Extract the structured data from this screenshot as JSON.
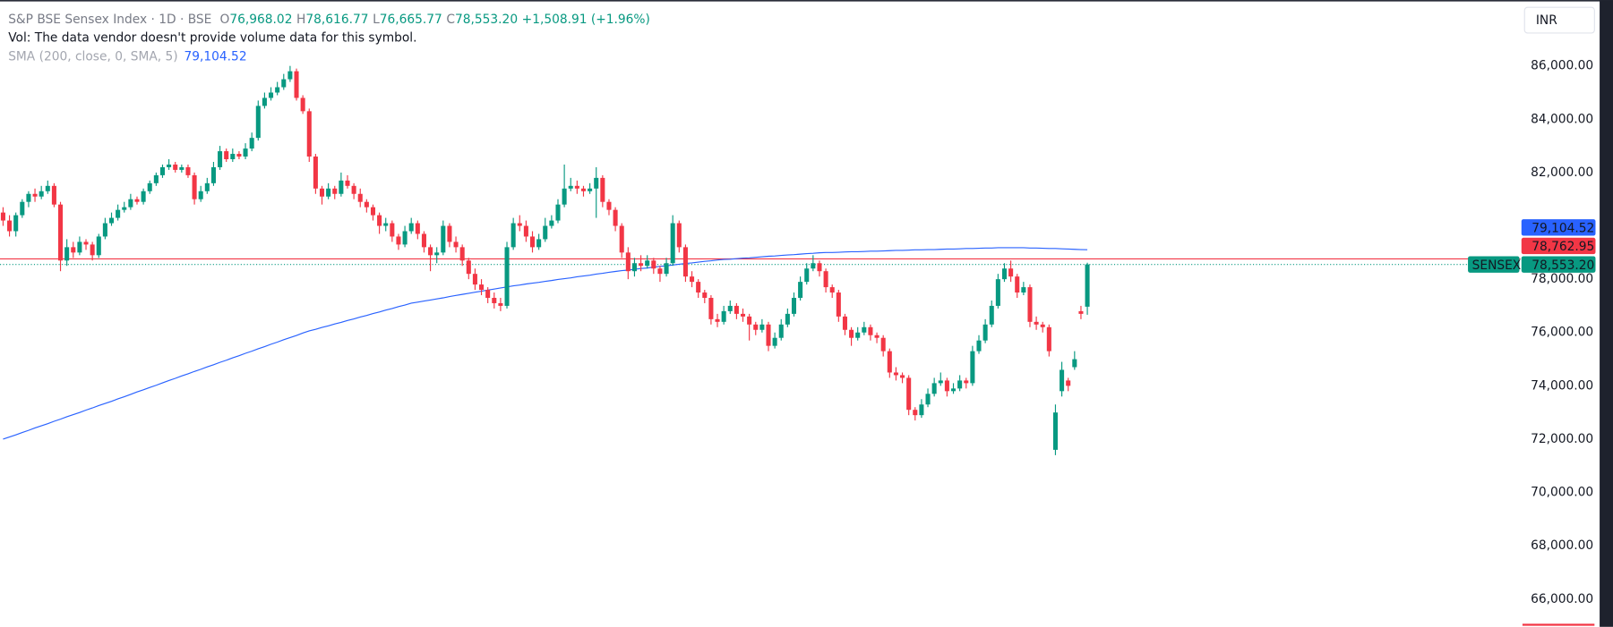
{
  "chart_data": {
    "type": "candlestick",
    "header": {
      "title": "S&P BSE Sensex Index · 1D · BSE",
      "ohlc": [
        {
          "key": "O",
          "value": "76,968.02"
        },
        {
          "key": "H",
          "value": "78,616.77"
        },
        {
          "key": "L",
          "value": "76,665.77"
        },
        {
          "key": "C",
          "value": "78,553.20"
        }
      ],
      "change": "+1,508.91 (+1.96%)",
      "volume_note": "Vol: The data vendor doesn't provide volume data for this symbol.",
      "sma_label": "SMA (200, close, 0, SMA, 5)",
      "sma_value": "79,104.52"
    },
    "currency": "INR",
    "up_color": "#089981",
    "down_color": "#f23645",
    "sma_color": "#2962ff",
    "ylim": [
      64960,
      88466
    ],
    "yticks": [
      {
        "value": 86000,
        "label": "86,000.00"
      },
      {
        "value": 84000,
        "label": "84,000.00"
      },
      {
        "value": 82000,
        "label": "82,000.00"
      },
      {
        "value": 80000,
        "label": "80,000.00"
      },
      {
        "value": 78000,
        "label": "78,000.00"
      },
      {
        "value": 76000,
        "label": "76,000.00"
      },
      {
        "value": 74000,
        "label": "74,000.00"
      },
      {
        "value": 72000,
        "label": "72,000.00"
      },
      {
        "value": 70000,
        "label": "70,000.00"
      },
      {
        "value": 68000,
        "label": "68,000.00"
      },
      {
        "value": 66000,
        "label": "66,000.00"
      }
    ],
    "price_lines": [
      {
        "value": 79104.52,
        "label": "79,104.52",
        "color": "#2962ff",
        "line": "none"
      },
      {
        "value": 78762.95,
        "label": "78,762.95",
        "color": "#f23645",
        "line": "solid"
      },
      {
        "name": "SENSEX",
        "value": 78553.2,
        "label": "78,553.20",
        "color": "#089981",
        "line": "dotted"
      }
    ],
    "ohlc": [
      [
        80500,
        80700,
        80000,
        80200
      ],
      [
        80200,
        80400,
        79600,
        79800
      ],
      [
        79800,
        80500,
        79600,
        80400
      ],
      [
        80400,
        81000,
        80300,
        80900
      ],
      [
        80900,
        81300,
        80700,
        81200
      ],
      [
        81200,
        81400,
        80900,
        81100
      ],
      [
        81100,
        81500,
        81000,
        81300
      ],
      [
        81300,
        81700,
        81200,
        81500
      ],
      [
        81500,
        81600,
        80700,
        80800
      ],
      [
        80800,
        80900,
        78300,
        78700
      ],
      [
        78700,
        79500,
        78500,
        79200
      ],
      [
        79200,
        79400,
        78800,
        79000
      ],
      [
        79000,
        79600,
        78900,
        79400
      ],
      [
        79400,
        79500,
        79100,
        79300
      ],
      [
        79300,
        79400,
        78700,
        78900
      ],
      [
        78900,
        79700,
        78800,
        79600
      ],
      [
        79600,
        80300,
        79500,
        80100
      ],
      [
        80100,
        80500,
        80000,
        80300
      ],
      [
        80300,
        80800,
        80200,
        80600
      ],
      [
        80600,
        80900,
        80500,
        80700
      ],
      [
        80700,
        81200,
        80600,
        81000
      ],
      [
        81000,
        81100,
        80800,
        80900
      ],
      [
        80900,
        81400,
        80800,
        81300
      ],
      [
        81300,
        81700,
        81200,
        81600
      ],
      [
        81600,
        82000,
        81500,
        81900
      ],
      [
        81900,
        82300,
        81800,
        82200
      ],
      [
        82200,
        82500,
        82100,
        82300
      ],
      [
        82300,
        82400,
        82000,
        82100
      ],
      [
        82100,
        82300,
        82000,
        82200
      ],
      [
        82200,
        82300,
        81800,
        81900
      ],
      [
        81900,
        82000,
        80800,
        81000
      ],
      [
        81000,
        81500,
        80900,
        81300
      ],
      [
        81300,
        81800,
        81200,
        81600
      ],
      [
        81600,
        82400,
        81500,
        82200
      ],
      [
        82200,
        83000,
        82100,
        82800
      ],
      [
        82800,
        82900,
        82400,
        82500
      ],
      [
        82500,
        82900,
        82400,
        82700
      ],
      [
        82700,
        82800,
        82500,
        82600
      ],
      [
        82600,
        83100,
        82500,
        82900
      ],
      [
        82900,
        83500,
        82800,
        83300
      ],
      [
        83300,
        84700,
        83200,
        84500
      ],
      [
        84500,
        85000,
        84400,
        84800
      ],
      [
        84800,
        85200,
        84700,
        85000
      ],
      [
        85000,
        85400,
        84900,
        85200
      ],
      [
        85200,
        85700,
        85100,
        85500
      ],
      [
        85500,
        86000,
        85400,
        85800
      ],
      [
        85800,
        85900,
        84700,
        84800
      ],
      [
        84800,
        84900,
        84200,
        84300
      ],
      [
        84300,
        84400,
        82400,
        82600
      ],
      [
        82600,
        82700,
        81200,
        81400
      ],
      [
        81400,
        81500,
        80800,
        81100
      ],
      [
        81100,
        81600,
        81000,
        81400
      ],
      [
        81400,
        81500,
        81000,
        81200
      ],
      [
        81200,
        82000,
        81100,
        81700
      ],
      [
        81700,
        81900,
        81400,
        81500
      ],
      [
        81500,
        81600,
        81000,
        81200
      ],
      [
        81200,
        81400,
        80700,
        80900
      ],
      [
        80900,
        81000,
        80500,
        80700
      ],
      [
        80700,
        80800,
        80200,
        80400
      ],
      [
        80400,
        80500,
        79700,
        80000
      ],
      [
        80000,
        80300,
        79800,
        80100
      ],
      [
        80100,
        80200,
        79400,
        79600
      ],
      [
        79600,
        79700,
        79100,
        79300
      ],
      [
        79300,
        80000,
        79200,
        79800
      ],
      [
        79800,
        80300,
        79700,
        80100
      ],
      [
        80100,
        80200,
        79500,
        79700
      ],
      [
        79700,
        79800,
        79000,
        79200
      ],
      [
        79200,
        79300,
        78300,
        78900
      ],
      [
        78900,
        79200,
        78600,
        79000
      ],
      [
        79000,
        80200,
        78900,
        80000
      ],
      [
        80000,
        80100,
        79200,
        79400
      ],
      [
        79400,
        79600,
        79000,
        79200
      ],
      [
        79200,
        79300,
        78500,
        78700
      ],
      [
        78700,
        78800,
        78000,
        78200
      ],
      [
        78200,
        78400,
        77600,
        77800
      ],
      [
        77800,
        78000,
        77400,
        77600
      ],
      [
        77600,
        77700,
        77100,
        77300
      ],
      [
        77300,
        77500,
        76900,
        77100
      ],
      [
        77100,
        77300,
        76800,
        77000
      ],
      [
        77000,
        79400,
        76900,
        79200
      ],
      [
        79200,
        80300,
        79100,
        80100
      ],
      [
        80100,
        80400,
        79800,
        80000
      ],
      [
        80000,
        80200,
        79400,
        79600
      ],
      [
        79600,
        79800,
        79000,
        79200
      ],
      [
        79200,
        79700,
        79100,
        79500
      ],
      [
        79500,
        80300,
        79400,
        80000
      ],
      [
        80000,
        80400,
        79900,
        80200
      ],
      [
        80200,
        81000,
        80100,
        80800
      ],
      [
        80800,
        82300,
        80700,
        81400
      ],
      [
        81400,
        81800,
        81300,
        81500
      ],
      [
        81500,
        81700,
        81200,
        81400
      ],
      [
        81400,
        81500,
        81100,
        81300
      ],
      [
        81300,
        81600,
        81200,
        81400
      ],
      [
        81400,
        82200,
        80300,
        81800
      ],
      [
        81800,
        81900,
        80700,
        80900
      ],
      [
        80900,
        81000,
        80400,
        80600
      ],
      [
        80600,
        80700,
        79800,
        80000
      ],
      [
        80000,
        80100,
        78800,
        79000
      ],
      [
        79000,
        79200,
        78000,
        78300
      ],
      [
        78300,
        78800,
        78100,
        78600
      ],
      [
        78600,
        78900,
        78300,
        78500
      ],
      [
        78500,
        78900,
        78400,
        78700
      ],
      [
        78700,
        78800,
        78200,
        78400
      ],
      [
        78400,
        78500,
        77900,
        78200
      ],
      [
        78200,
        78800,
        78100,
        78600
      ],
      [
        78600,
        80400,
        78500,
        80100
      ],
      [
        80100,
        80200,
        79000,
        79200
      ],
      [
        79200,
        79300,
        77900,
        78100
      ],
      [
        78100,
        78300,
        77700,
        77900
      ],
      [
        77900,
        78000,
        77300,
        77500
      ],
      [
        77500,
        77600,
        77100,
        77300
      ],
      [
        77300,
        77400,
        76300,
        76500
      ],
      [
        76500,
        76700,
        76200,
        76400
      ],
      [
        76400,
        77000,
        76300,
        76800
      ],
      [
        76800,
        77200,
        76700,
        77000
      ],
      [
        77000,
        77100,
        76500,
        76700
      ],
      [
        76700,
        76900,
        76400,
        76600
      ],
      [
        76600,
        76700,
        75700,
        76300
      ],
      [
        76300,
        76400,
        75900,
        76100
      ],
      [
        76100,
        76500,
        76000,
        76300
      ],
      [
        76300,
        76400,
        75300,
        75500
      ],
      [
        75500,
        76000,
        75400,
        75800
      ],
      [
        75800,
        76500,
        75700,
        76300
      ],
      [
        76300,
        76900,
        76200,
        76700
      ],
      [
        76700,
        77500,
        76600,
        77300
      ],
      [
        77300,
        78100,
        77200,
        77900
      ],
      [
        77900,
        78600,
        77800,
        78400
      ],
      [
        78400,
        78900,
        78300,
        78600
      ],
      [
        78600,
        78700,
        78100,
        78300
      ],
      [
        78300,
        78400,
        77500,
        77700
      ],
      [
        77700,
        77800,
        77300,
        77500
      ],
      [
        77500,
        77600,
        76400,
        76600
      ],
      [
        76600,
        76700,
        75900,
        76100
      ],
      [
        76100,
        76200,
        75500,
        75800
      ],
      [
        75800,
        76200,
        75700,
        76000
      ],
      [
        76000,
        76400,
        75900,
        76200
      ],
      [
        76200,
        76300,
        75700,
        75900
      ],
      [
        75900,
        76000,
        75600,
        75800
      ],
      [
        75800,
        75900,
        75100,
        75300
      ],
      [
        75300,
        75400,
        74300,
        74500
      ],
      [
        74500,
        74700,
        74200,
        74400
      ],
      [
        74400,
        74500,
        74100,
        74300
      ],
      [
        74300,
        74400,
        72900,
        73100
      ],
      [
        73100,
        73200,
        72700,
        72900
      ],
      [
        72900,
        73500,
        72800,
        73300
      ],
      [
        73300,
        73900,
        73200,
        73700
      ],
      [
        73700,
        74300,
        73600,
        74100
      ],
      [
        74100,
        74500,
        74000,
        74200
      ],
      [
        74200,
        74300,
        73600,
        73800
      ],
      [
        73800,
        74100,
        73700,
        73900
      ],
      [
        73900,
        74400,
        73800,
        74200
      ],
      [
        74200,
        74300,
        73900,
        74100
      ],
      [
        74100,
        75500,
        74000,
        75300
      ],
      [
        75300,
        75900,
        75200,
        75700
      ],
      [
        75700,
        76500,
        75600,
        76300
      ],
      [
        76300,
        77200,
        76200,
        77000
      ],
      [
        77000,
        78200,
        76900,
        78000
      ],
      [
        78000,
        78600,
        77900,
        78400
      ],
      [
        78400,
        78700,
        77900,
        78100
      ],
      [
        78100,
        78200,
        77300,
        77500
      ],
      [
        77500,
        77900,
        77400,
        77700
      ],
      [
        77700,
        77800,
        76200,
        76400
      ],
      [
        76400,
        76600,
        76100,
        76300
      ],
      [
        76300,
        76400,
        76000,
        76200
      ],
      [
        76200,
        76300,
        75100,
        75300
      ],
      [
        71600,
        73300,
        71400,
        73000
      ],
      [
        73800,
        74900,
        73600,
        74600
      ],
      [
        74200,
        74300,
        73800,
        74000
      ],
      [
        74700,
        75300,
        74600,
        75000
      ],
      [
        76800,
        77000,
        76500,
        76700
      ],
      [
        76968.02,
        78616.77,
        76665.77,
        78553.2
      ]
    ],
    "sma": [
      72000,
      72080,
      72160,
      72250,
      72330,
      72420,
      72500,
      72580,
      72670,
      72750,
      72840,
      72920,
      73000,
      73090,
      73170,
      73260,
      73340,
      73420,
      73510,
      73590,
      73680,
      73770,
      73850,
      73940,
      74020,
      74110,
      74200,
      74280,
      74370,
      74450,
      74540,
      74620,
      74710,
      74790,
      74880,
      74960,
      75050,
      75130,
      75220,
      75300,
      75390,
      75470,
      75560,
      75640,
      75730,
      75810,
      75890,
      75980,
      76060,
      76120,
      76190,
      76250,
      76320,
      76380,
      76450,
      76510,
      76580,
      76640,
      76710,
      76770,
      76840,
      76900,
      76970,
      77030,
      77100,
      77140,
      77180,
      77220,
      77260,
      77300,
      77350,
      77390,
      77430,
      77470,
      77510,
      77550,
      77590,
      77630,
      77670,
      77710,
      77750,
      77780,
      77820,
      77850,
      77880,
      77920,
      77950,
      77990,
      78020,
      78050,
      78090,
      78120,
      78150,
      78190,
      78220,
      78260,
      78290,
      78320,
      78340,
      78370,
      78400,
      78420,
      78450,
      78480,
      78500,
      78530,
      78560,
      78590,
      78610,
      78640,
      78670,
      78690,
      78720,
      78740,
      78750,
      78770,
      78790,
      78800,
      78820,
      78840,
      78860,
      78870,
      78890,
      78910,
      78920,
      78940,
      78960,
      78970,
      78990,
      79000,
      79000,
      79010,
      79020,
      79030,
      79030,
      79040,
      79050,
      79050,
      79060,
      79070,
      79080,
      79080,
      79090,
      79100,
      79100,
      79110,
      79110,
      79120,
      79130,
      79130,
      79140,
      79150,
      79150,
      79160,
      79170,
      79170,
      79180,
      79180,
      79180,
      79180,
      79180,
      79170,
      79170,
      79160,
      79150,
      79150,
      79140,
      79130,
      79120,
      79110,
      79104.52
    ]
  }
}
